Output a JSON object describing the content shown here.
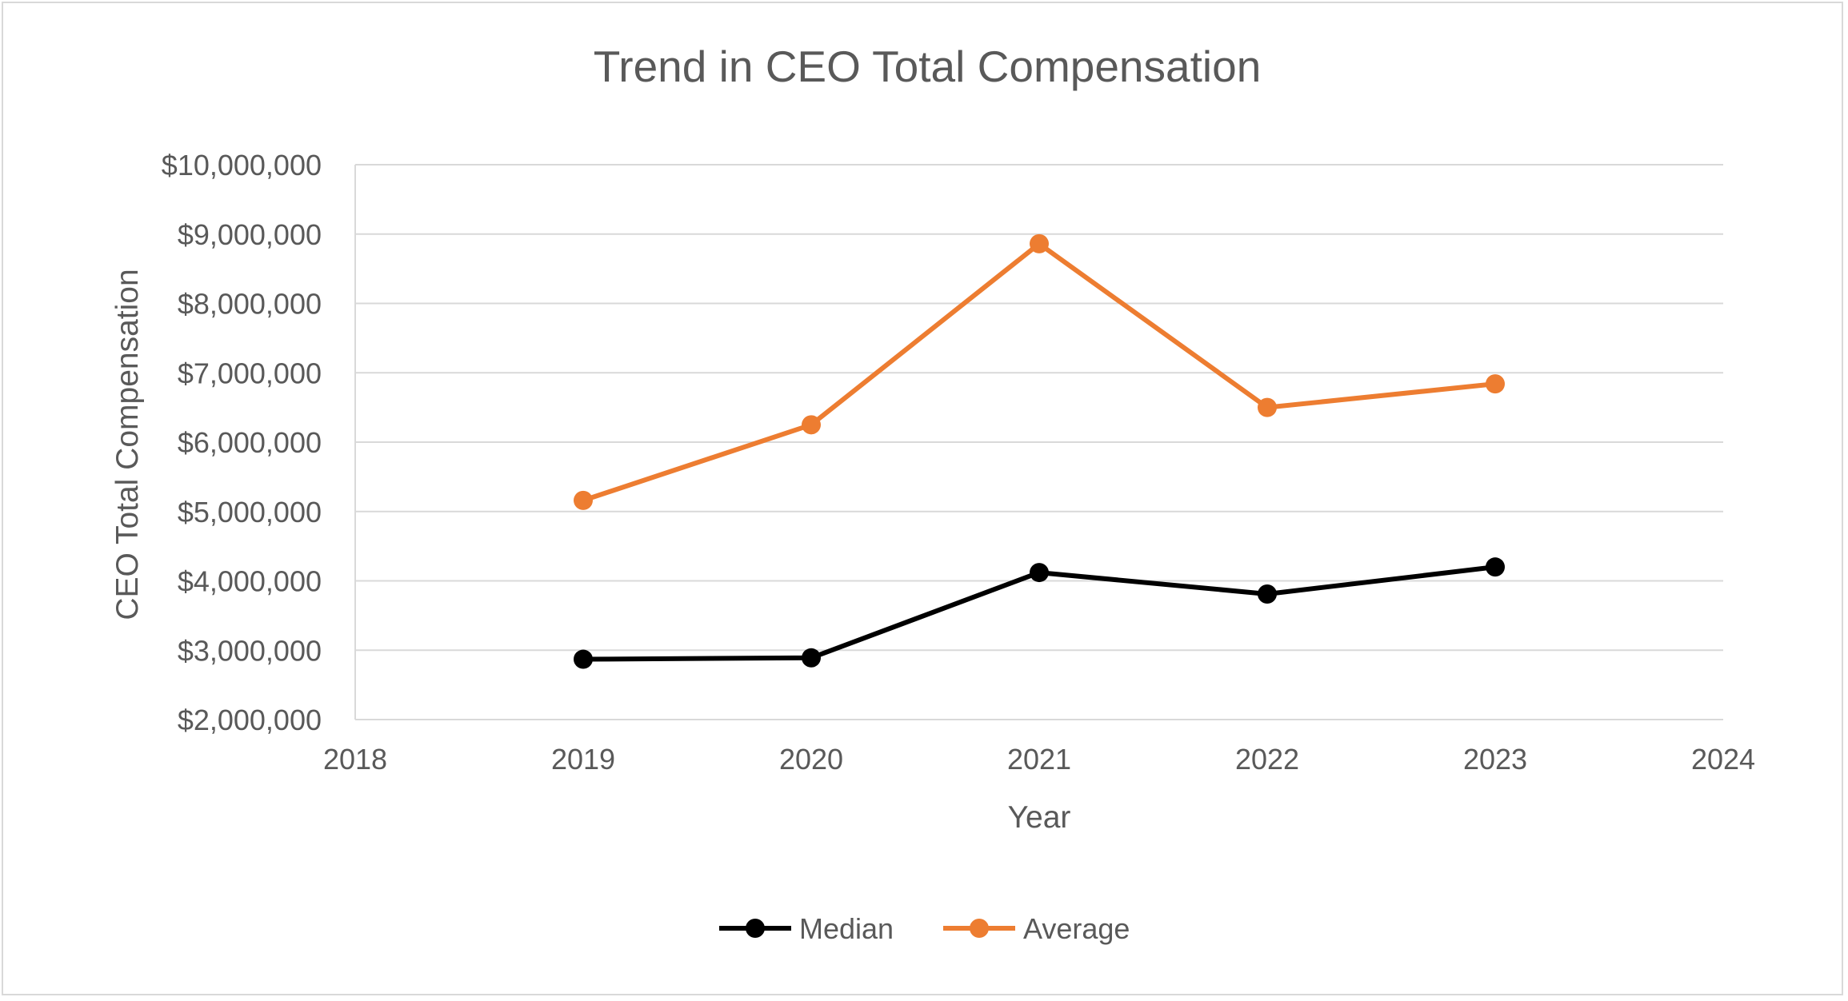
{
  "colors": {
    "median": "#000000",
    "average": "#ED7D31",
    "grid": "#d9d9d9",
    "text": "#595959"
  },
  "chart_data": {
    "type": "line",
    "title": "Trend in CEO Total Compensation",
    "xlabel": "Year",
    "ylabel": "CEO Total Compensation",
    "xlim": [
      2018,
      2024
    ],
    "ylim": [
      2000000,
      10000000
    ],
    "x_ticks": [
      "2018",
      "2019",
      "2020",
      "2021",
      "2022",
      "2023",
      "2024"
    ],
    "y_ticks": [
      "$2,000,000",
      "$3,000,000",
      "$4,000,000",
      "$5,000,000",
      "$6,000,000",
      "$7,000,000",
      "$8,000,000",
      "$9,000,000",
      "$10,000,000"
    ],
    "grid": true,
    "legend_position": "bottom",
    "series": [
      {
        "name": "Median",
        "color": "#000000",
        "points": [
          {
            "x": 2019,
            "y": 2870000
          },
          {
            "x": 2020,
            "y": 2890000
          },
          {
            "x": 2021,
            "y": 4120000
          },
          {
            "x": 2022,
            "y": 3810000
          },
          {
            "x": 2023,
            "y": 4200000
          }
        ]
      },
      {
        "name": "Average",
        "color": "#ED7D31",
        "points": [
          {
            "x": 2019,
            "y": 5160000
          },
          {
            "x": 2020,
            "y": 6250000
          },
          {
            "x": 2021,
            "y": 8860000
          },
          {
            "x": 2022,
            "y": 6500000
          },
          {
            "x": 2023,
            "y": 6840000
          }
        ]
      }
    ]
  }
}
